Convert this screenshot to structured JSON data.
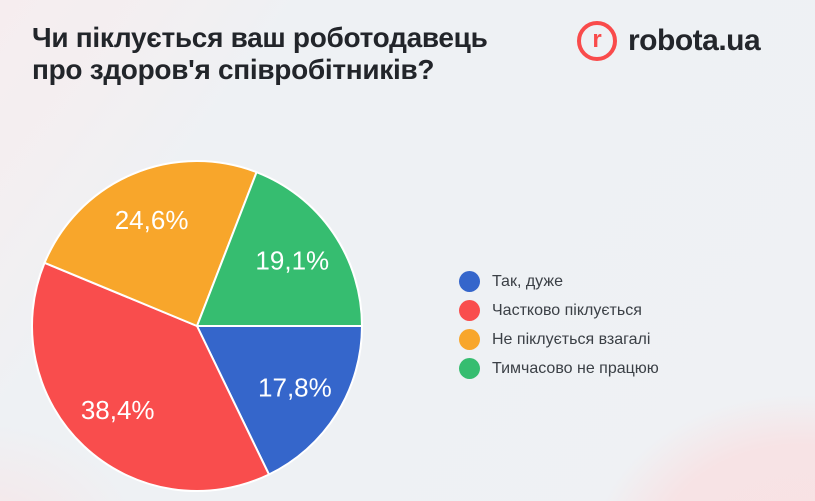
{
  "header": {
    "title": "Чи піклується ваш роботодавець\nпро здоров'я співробітників?",
    "logo": {
      "mark_letter": "r",
      "text": "robota.ua",
      "brand_color": "#f94b4b"
    }
  },
  "chart_data": {
    "type": "pie",
    "title": "Чи піклується ваш роботодавець про здоров'я співробітників?",
    "start_angle_deg": 0,
    "direction": "clockwise",
    "legend_position": "right",
    "label_color": "#ffffff",
    "slice_gap_color": "#ffffff",
    "slices": [
      {
        "label": "Так, дуже",
        "value": 17.8,
        "display": "17,8%",
        "color": "#3566cb"
      },
      {
        "label": "Частково піклується",
        "value": 38.4,
        "display": "38,4%",
        "color": "#f94d4d"
      },
      {
        "label": "Не піклується взагалі",
        "value": 24.6,
        "display": "24,6%",
        "color": "#f8a62b"
      },
      {
        "label": "Тимчасово не працюю",
        "value": 19.1,
        "display": "19,1%",
        "color": "#36bd70"
      }
    ]
  }
}
